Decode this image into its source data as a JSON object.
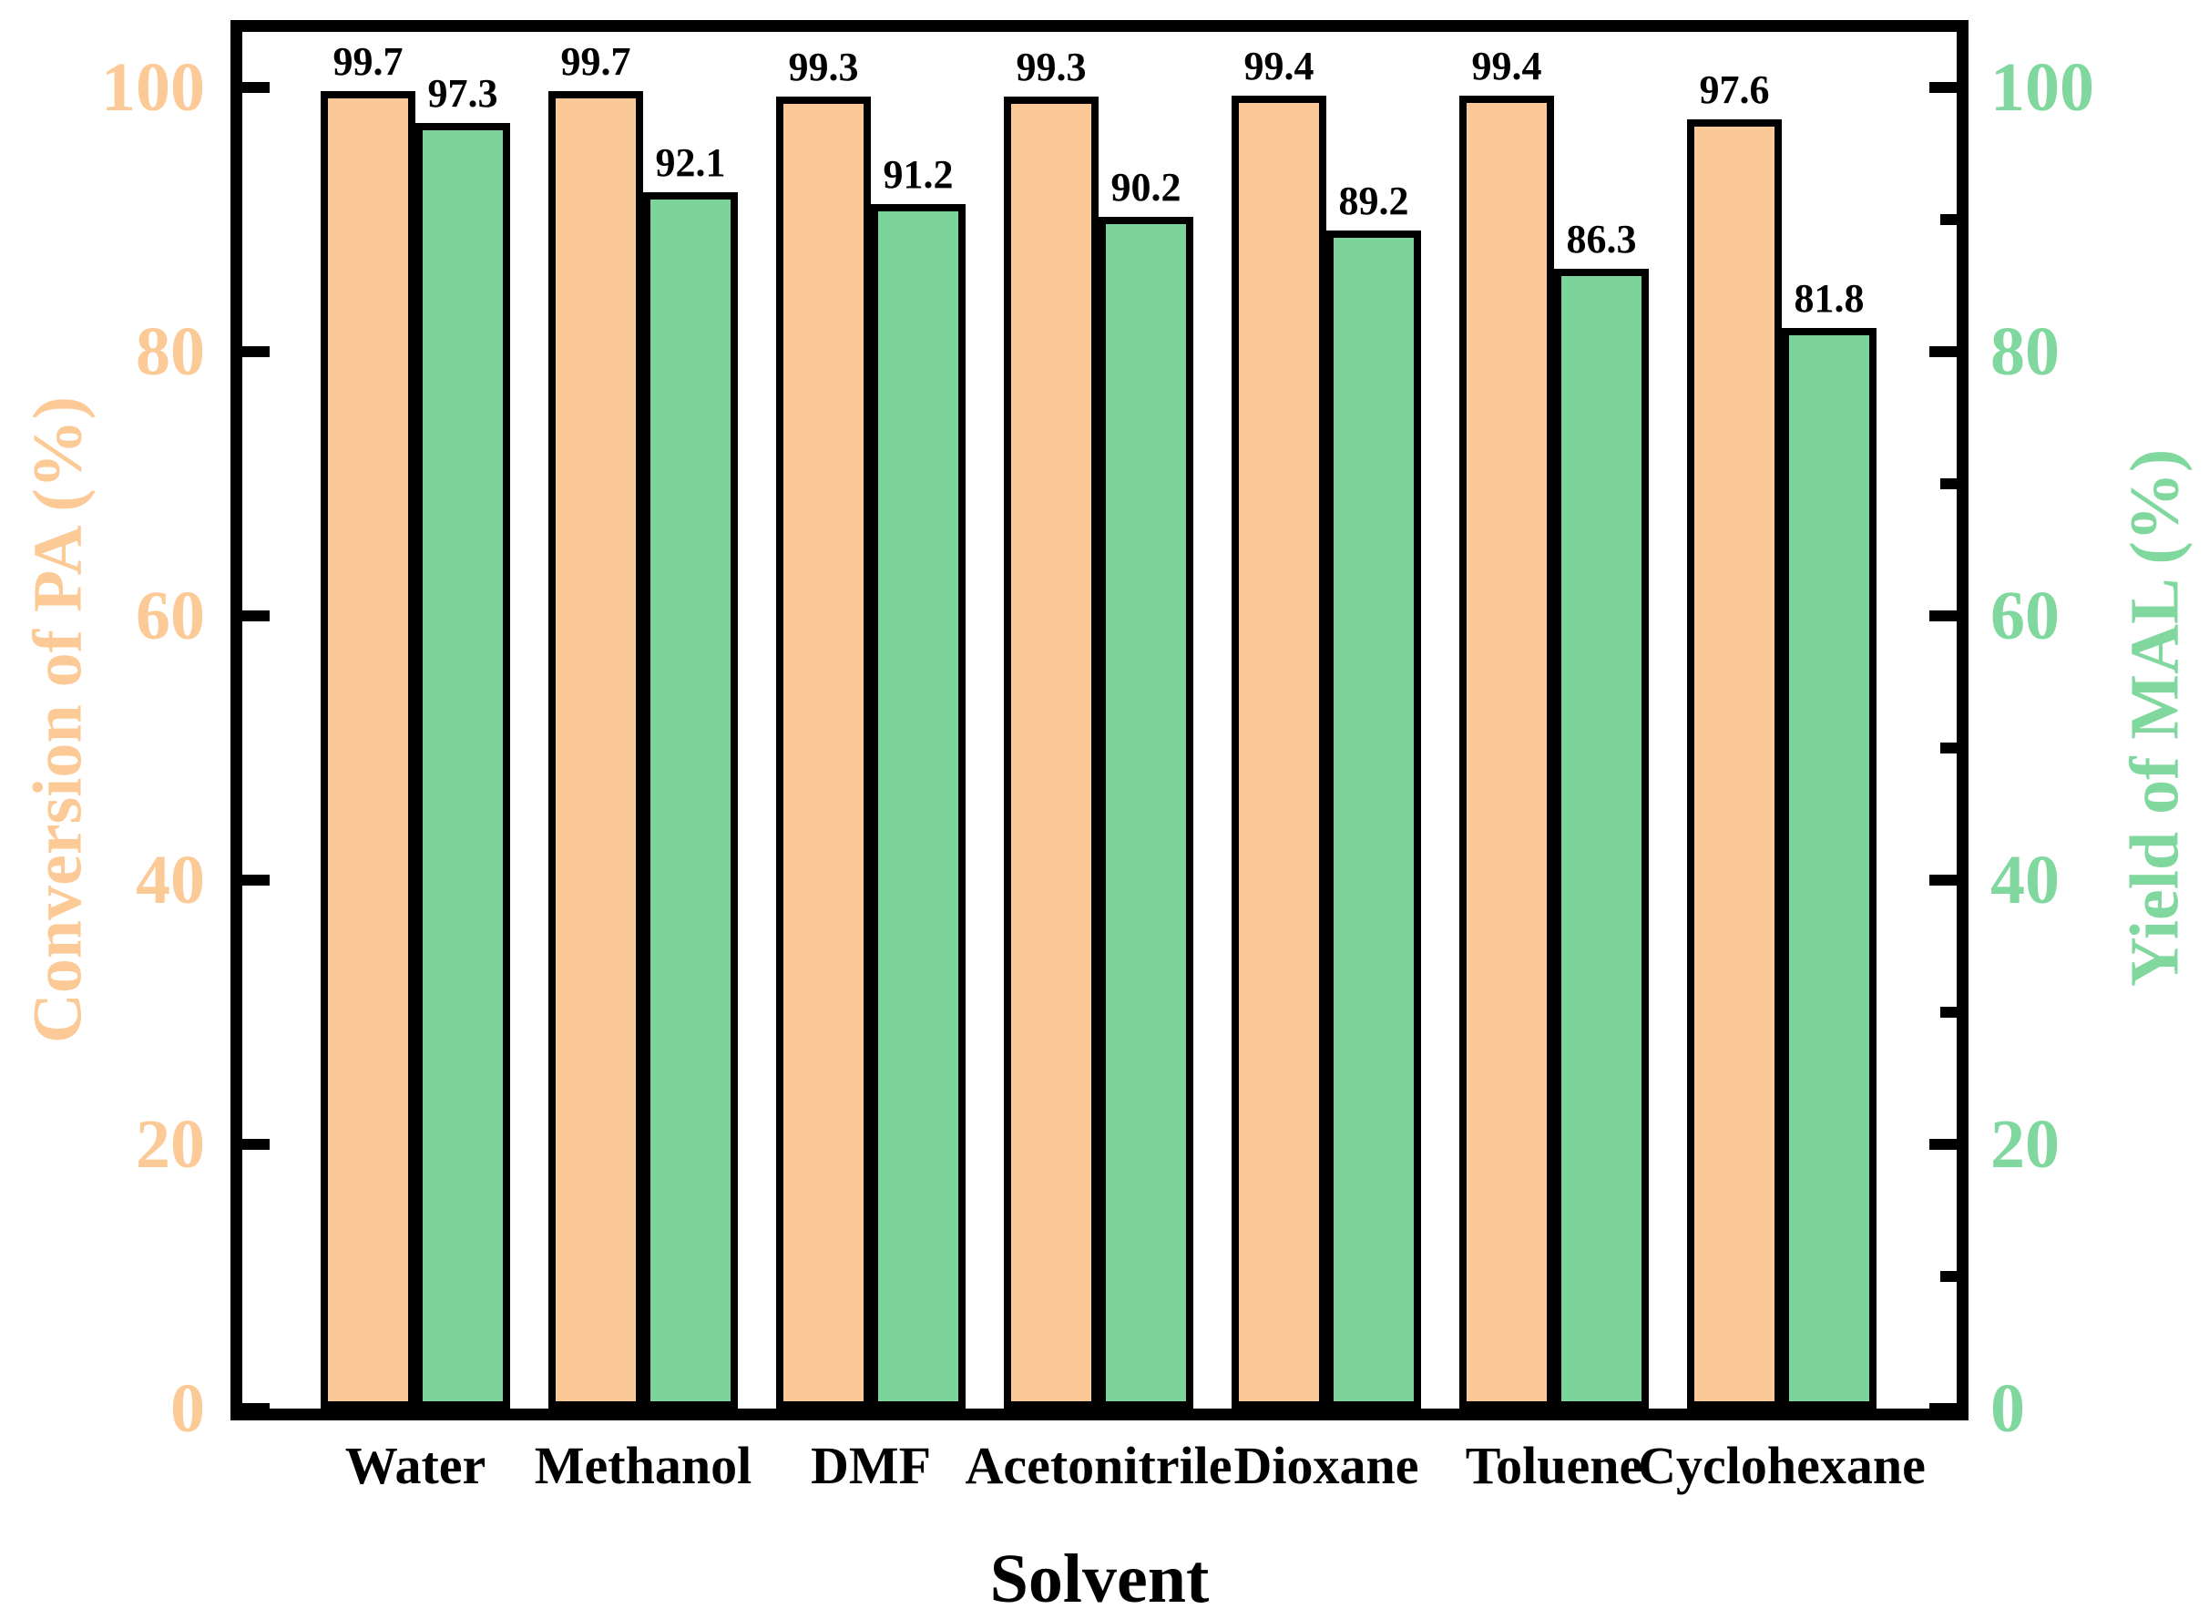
{
  "chart_data": {
    "type": "bar",
    "title": "",
    "xlabel": "Solvent",
    "ylabel_left": "Conversion of PA (%)",
    "ylabel_right": "Yield of MAL (%)",
    "categories": [
      "Water",
      "Methanol",
      "DMF",
      "Acetonitrile",
      "Dioxane",
      "Toluene",
      "Cyclohexane"
    ],
    "series": [
      {
        "name": "Conversion of PA (%)",
        "axis": "left",
        "color": "#FBC997",
        "values": [
          99.7,
          99.7,
          99.3,
          99.3,
          99.4,
          99.4,
          97.6
        ],
        "labels": [
          "99.7",
          "99.7",
          "99.3",
          "99.3",
          "99.4",
          "99.4",
          "97.6"
        ]
      },
      {
        "name": "Yield of MAL (%)",
        "axis": "right",
        "color": "#7DD49A",
        "values": [
          97.3,
          92.1,
          91.2,
          90.2,
          89.2,
          86.3,
          81.8
        ],
        "labels": [
          "97.3",
          "92.1",
          "91.2",
          "90.2",
          "89.2",
          "86.3",
          "81.8"
        ]
      }
    ],
    "ylim": [
      0,
      104.2
    ],
    "yticks_major": [
      0,
      20,
      40,
      60,
      80,
      100
    ],
    "yticks_minor_right": [
      10,
      30,
      50,
      70,
      90
    ],
    "ytick_labels": [
      "0",
      "20",
      "40",
      "60",
      "80",
      "100"
    ],
    "grid": false,
    "legend": "none",
    "bar_edge_color": "#000000",
    "left_tick_label_color": "#FBCA97",
    "right_tick_label_color": "#81D89F"
  }
}
